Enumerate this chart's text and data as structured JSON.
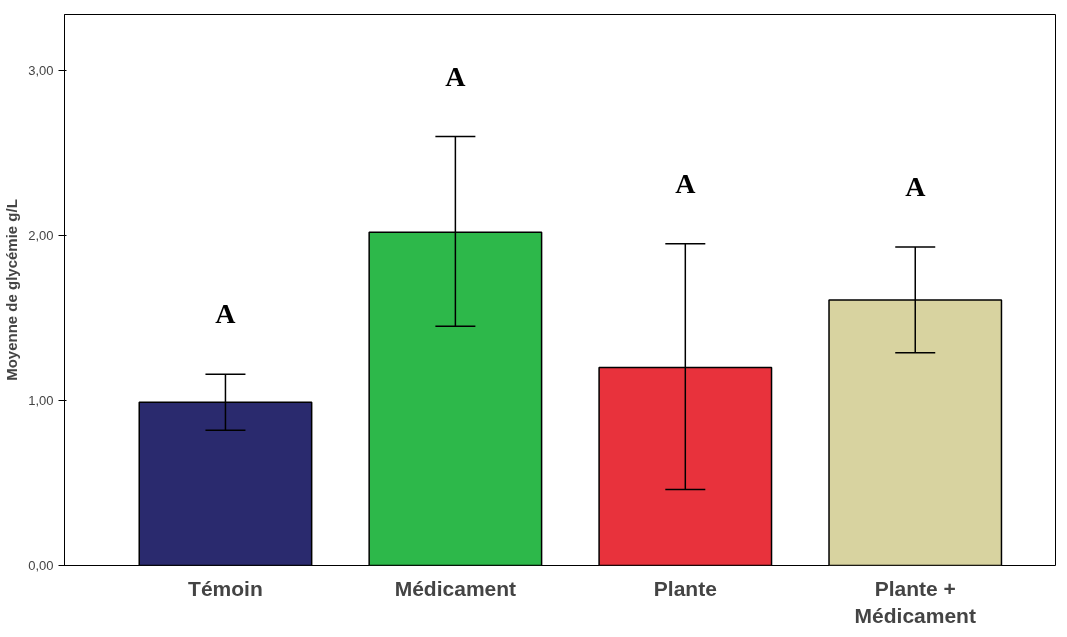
{
  "chart_data": {
    "type": "bar",
    "ylabel": "Moyenne de glycémie g/L",
    "categories": [
      "Témoin",
      "Médicament",
      "Plante",
      "Plante +\nMédicament"
    ],
    "values": [
      0.99,
      2.02,
      1.2,
      1.61
    ],
    "colors": [
      "#2a2a6e",
      "#2db84a",
      "#e8323c",
      "#d8d3a0"
    ],
    "errors": [
      [
        0.82,
        1.16
      ],
      [
        1.45,
        2.6
      ],
      [
        0.46,
        1.95
      ],
      [
        1.29,
        1.93
      ]
    ],
    "ylim": [
      0,
      3.34
    ],
    "yticks": [
      {
        "value": 0,
        "label": "0,00"
      },
      {
        "value": 1,
        "label": "1,00"
      },
      {
        "value": 2,
        "label": "2,00"
      },
      {
        "value": 3,
        "label": "3,00"
      }
    ],
    "grid": false,
    "legend": false,
    "annotations": [
      "A",
      "A",
      "A",
      "A"
    ]
  }
}
